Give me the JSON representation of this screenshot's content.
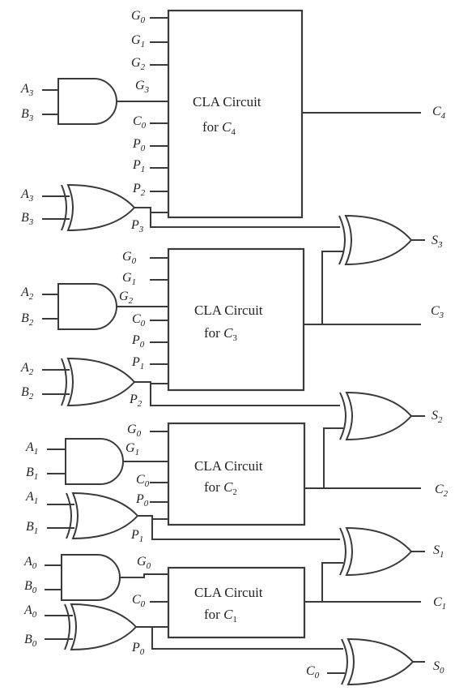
{
  "blocks": [
    {
      "line1": "CLA Circuit",
      "line2_prefix": "for ",
      "line2_var": "C",
      "line2_sub": "4",
      "inputs": [
        {
          "v": "G",
          "s": "0"
        },
        {
          "v": "G",
          "s": "1"
        },
        {
          "v": "G",
          "s": "2"
        },
        {
          "v": "G",
          "s": "3"
        },
        {
          "v": "C",
          "s": "0"
        },
        {
          "v": "P",
          "s": "0"
        },
        {
          "v": "P",
          "s": "1"
        },
        {
          "v": "P",
          "s": "2"
        }
      ],
      "output": {
        "v": "C",
        "s": "4"
      }
    },
    {
      "line1": "CLA Circuit",
      "line2_prefix": "for ",
      "line2_var": "C",
      "line2_sub": "3",
      "inputs": [
        {
          "v": "G",
          "s": "0"
        },
        {
          "v": "G",
          "s": "1"
        },
        {
          "v": "G",
          "s": "2"
        },
        {
          "v": "C",
          "s": "0"
        },
        {
          "v": "P",
          "s": "0"
        },
        {
          "v": "P",
          "s": "1"
        }
      ],
      "output": {
        "v": "C",
        "s": "3"
      }
    },
    {
      "line1": "CLA Circuit",
      "line2_prefix": "for ",
      "line2_var": "C",
      "line2_sub": "2",
      "inputs": [
        {
          "v": "G",
          "s": "0"
        },
        {
          "v": "G",
          "s": "1"
        },
        {
          "v": "C",
          "s": "0"
        },
        {
          "v": "P",
          "s": "0"
        }
      ],
      "output": {
        "v": "C",
        "s": "2"
      }
    },
    {
      "line1": "CLA Circuit",
      "line2_prefix": "for ",
      "line2_var": "C",
      "line2_sub": "1",
      "inputs": [
        {
          "v": "G",
          "s": "0"
        },
        {
          "v": "C",
          "s": "0"
        }
      ],
      "output": {
        "v": "C",
        "s": "1"
      }
    }
  ],
  "and_gates": [
    {
      "a": {
        "v": "A",
        "s": "3"
      },
      "b": {
        "v": "B",
        "s": "3"
      }
    },
    {
      "a": {
        "v": "A",
        "s": "2"
      },
      "b": {
        "v": "B",
        "s": "2"
      }
    },
    {
      "a": {
        "v": "A",
        "s": "1"
      },
      "b": {
        "v": "B",
        "s": "1"
      }
    },
    {
      "a": {
        "v": "A",
        "s": "0"
      },
      "b": {
        "v": "B",
        "s": "0"
      }
    }
  ],
  "xor_gates_left": [
    {
      "a": {
        "v": "A",
        "s": "3"
      },
      "b": {
        "v": "B",
        "s": "3"
      }
    },
    {
      "a": {
        "v": "A",
        "s": "2"
      },
      "b": {
        "v": "B",
        "s": "2"
      }
    },
    {
      "a": {
        "v": "A",
        "s": "1"
      },
      "b": {
        "v": "B",
        "s": "1"
      }
    },
    {
      "a": {
        "v": "A",
        "s": "0"
      },
      "b": {
        "v": "B",
        "s": "0"
      }
    }
  ],
  "propagate_labels": [
    {
      "v": "P",
      "s": "3"
    },
    {
      "v": "P",
      "s": "2"
    },
    {
      "v": "P",
      "s": "1"
    },
    {
      "v": "P",
      "s": "0"
    }
  ],
  "sum_outputs": [
    {
      "v": "S",
      "s": "3"
    },
    {
      "v": "S",
      "s": "2"
    },
    {
      "v": "S",
      "s": "1"
    },
    {
      "v": "S",
      "s": "0"
    }
  ],
  "s0_carry_in": {
    "v": "C",
    "s": "0"
  }
}
